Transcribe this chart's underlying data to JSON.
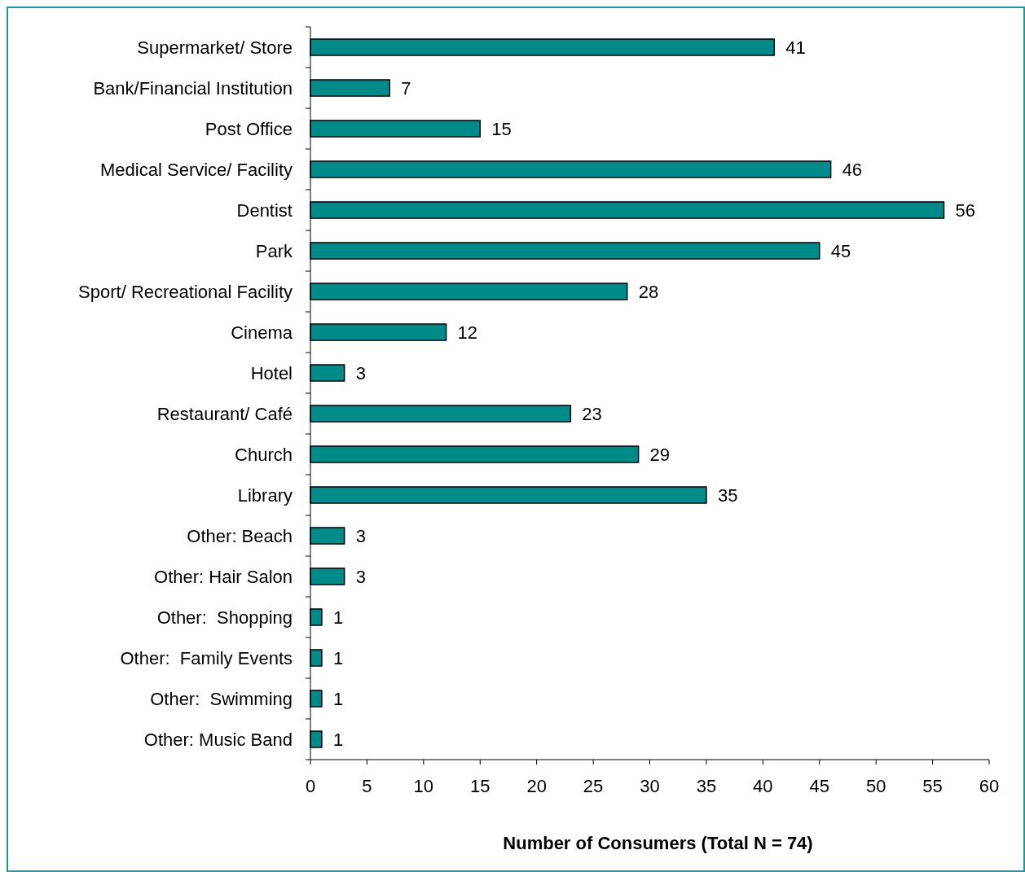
{
  "chart_data": {
    "type": "bar",
    "orientation": "horizontal",
    "xlabel": "Number of Consumers (Total N = 74)",
    "categories": [
      "Supermarket/ Store",
      "Bank/Financial Institution",
      "Post Office",
      "Medical Service/ Facility",
      "Dentist",
      "Park",
      "Sport/ Recreational Facility",
      "Cinema",
      "Hotel",
      "Restaurant/ Café",
      "Church",
      "Library",
      "Other: Beach",
      "Other: Hair Salon",
      "Other:  Shopping",
      "Other:  Family Events",
      "Other:  Swimming",
      "Other: Music Band"
    ],
    "values": [
      41,
      7,
      15,
      46,
      56,
      45,
      28,
      12,
      3,
      23,
      29,
      35,
      3,
      3,
      1,
      1,
      1,
      1
    ],
    "color": "#008b8b",
    "xlim": [
      0,
      60
    ],
    "xticks": [
      0,
      5,
      10,
      15,
      20,
      25,
      30,
      35,
      40,
      45,
      50,
      55,
      60
    ],
    "data_labels": true
  }
}
